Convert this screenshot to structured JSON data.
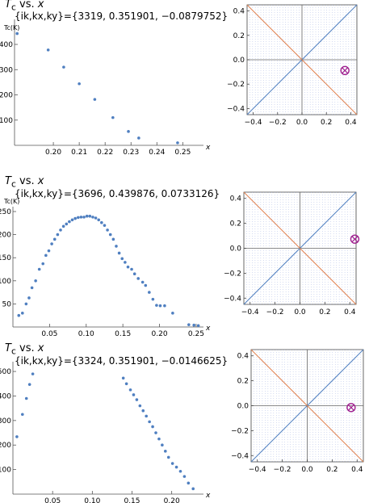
{
  "panels": [
    {
      "title_var": "T",
      "title_sub": "c",
      "title_rest": " vs. ",
      "title_x": "x",
      "info": "{ik,kx,ky}={3319, 0.351901, −0.0879752}"
    },
    {
      "title_var": "T",
      "title_sub": "c",
      "title_rest": " vs. ",
      "title_x": "x",
      "info": "{ik,kx,ky}={3696, 0.439876, 0.0733126}"
    },
    {
      "title_var": "T",
      "title_sub": "c",
      "title_rest": " vs. ",
      "title_x": "x",
      "info": "{ik,kx,ky}={3324, 0.351901, −0.0146625}"
    }
  ],
  "chart_data": [
    {
      "type": "scatter",
      "xlabel": "x",
      "ylabel": "Tc(K)",
      "xlim": [
        0.185,
        0.258
      ],
      "ylim": [
        0,
        480
      ],
      "xticks": [
        0.2,
        0.21,
        0.22,
        0.23,
        0.24,
        0.25
      ],
      "xtick_labels": [
        "0.20",
        "0.21",
        "0.22",
        "0.23",
        "0.24",
        "0.25"
      ],
      "yticks": [
        100,
        200,
        300,
        400
      ],
      "ytick_labels": [
        "100",
        "200",
        "300",
        "400"
      ],
      "color": "#4f7fc0",
      "x": [
        0.186,
        0.198,
        0.204,
        0.21,
        0.216,
        0.223,
        0.229,
        0.233,
        0.248
      ],
      "y": [
        443,
        378,
        310,
        244,
        182,
        110,
        55,
        29,
        10
      ]
    },
    {
      "type": "scatter",
      "xlabel": "x",
      "ylabel": "Tc(K)",
      "xlim": [
        0.0,
        0.26
      ],
      "ylim": [
        0,
        250
      ],
      "xticks": [
        0.05,
        0.1,
        0.15,
        0.2,
        0.25
      ],
      "xtick_labels": [
        "0.05",
        "0.10",
        "0.15",
        "0.20",
        "0.25"
      ],
      "yticks": [
        50,
        100,
        150,
        200,
        250
      ],
      "ytick_labels": [
        "50",
        "100",
        "150",
        "200",
        "250"
      ],
      "color": "#4f7fc0",
      "x": [
        0.008,
        0.013,
        0.018,
        0.022,
        0.026,
        0.031,
        0.036,
        0.041,
        0.045,
        0.049,
        0.053,
        0.057,
        0.061,
        0.065,
        0.069,
        0.073,
        0.077,
        0.081,
        0.085,
        0.089,
        0.093,
        0.097,
        0.101,
        0.105,
        0.109,
        0.113,
        0.117,
        0.121,
        0.125,
        0.129,
        0.133,
        0.137,
        0.141,
        0.145,
        0.149,
        0.153,
        0.157,
        0.162,
        0.166,
        0.171,
        0.177,
        0.181,
        0.186,
        0.191,
        0.196,
        0.201,
        0.207,
        0.218,
        0.24,
        0.247,
        0.253
      ],
      "y": [
        25,
        30,
        50,
        63,
        85,
        100,
        125,
        137,
        155,
        165,
        180,
        190,
        200,
        210,
        218,
        223,
        228,
        232,
        235,
        237,
        238,
        238,
        240,
        240,
        238,
        236,
        232,
        226,
        220,
        210,
        200,
        190,
        175,
        160,
        148,
        140,
        130,
        125,
        115,
        105,
        97,
        90,
        75,
        60,
        47,
        46,
        46,
        30,
        5,
        4,
        3
      ]
    },
    {
      "type": "scatter",
      "xlabel": "x",
      "ylabel": "",
      "xlim": [
        0.0,
        0.24
      ],
      "ylim": [
        0,
        520
      ],
      "xticks": [
        0.05,
        0.1,
        0.15,
        0.2
      ],
      "xtick_labels": [
        "0.05",
        "0.10",
        "0.15",
        "0.20"
      ],
      "yticks": [
        100,
        200,
        300,
        400,
        500
      ],
      "ytick_labels": [
        "100",
        "200",
        "300",
        "400",
        "500"
      ],
      "color": "#4f7fc0",
      "x": [
        0.005,
        0.012,
        0.017,
        0.021,
        0.025,
        0.139,
        0.143,
        0.148,
        0.152,
        0.156,
        0.16,
        0.164,
        0.168,
        0.172,
        0.176,
        0.18,
        0.184,
        0.188,
        0.192,
        0.196,
        0.201,
        0.206,
        0.211,
        0.216,
        0.221,
        0.227
      ],
      "y": [
        234,
        325,
        390,
        447,
        490,
        473,
        450,
        425,
        405,
        385,
        360,
        340,
        318,
        295,
        275,
        250,
        225,
        200,
        175,
        150,
        125,
        110,
        93,
        72,
        45,
        22
      ]
    },
    {
      "type": "scatter",
      "xlabel": "",
      "ylabel": "",
      "xlim": [
        -0.45,
        0.45
      ],
      "ylim": [
        -0.45,
        0.45
      ],
      "xticks": [
        -0.4,
        -0.2,
        0.0,
        0.2,
        0.4
      ],
      "xtick_labels": [
        "−0.4",
        "−0.2",
        "0.0",
        "0.2",
        "0.4"
      ],
      "yticks": [
        -0.4,
        -0.2,
        0.0,
        0.2,
        0.4
      ],
      "ytick_labels": [
        "−0.4",
        "−0.2",
        "0.0",
        "0.2",
        "0.4"
      ],
      "grid": "dotted",
      "lines": [
        {
          "name": "",
          "color": "#4f7fc0",
          "x": [
            -0.45,
            0.45
          ],
          "y": [
            -0.45,
            0.45
          ]
        },
        {
          "name": "",
          "color": "#e0804f",
          "x": [
            -0.45,
            0.45
          ],
          "y": [
            0.45,
            -0.45
          ]
        }
      ],
      "marker": {
        "x": 0.351901,
        "y": -0.0879752,
        "color": "#a0208f"
      }
    },
    {
      "type": "scatter",
      "xlabel": "",
      "ylabel": "",
      "xlim": [
        -0.45,
        0.45
      ],
      "ylim": [
        -0.45,
        0.45
      ],
      "xticks": [
        -0.4,
        -0.2,
        0.0,
        0.2,
        0.4
      ],
      "xtick_labels": [
        "−0.4",
        "−0.2",
        "0.0",
        "0.2",
        "0.4"
      ],
      "yticks": [
        -0.4,
        -0.2,
        0.0,
        0.2,
        0.4
      ],
      "ytick_labels": [
        "−0.4",
        "−0.2",
        "0.0",
        "0.2",
        "0.4"
      ],
      "grid": "dotted",
      "lines": [
        {
          "name": "",
          "color": "#4f7fc0",
          "x": [
            -0.45,
            0.45
          ],
          "y": [
            -0.45,
            0.45
          ]
        },
        {
          "name": "",
          "color": "#e0804f",
          "x": [
            -0.45,
            0.45
          ],
          "y": [
            0.45,
            -0.45
          ]
        }
      ],
      "marker": {
        "x": 0.439876,
        "y": 0.0733126,
        "color": "#a0208f"
      }
    },
    {
      "type": "scatter",
      "xlabel": "",
      "ylabel": "",
      "xlim": [
        -0.45,
        0.45
      ],
      "ylim": [
        -0.45,
        0.45
      ],
      "xticks": [
        -0.4,
        -0.2,
        0.0,
        0.2,
        0.4
      ],
      "xtick_labels": [
        "−0.4",
        "−0.2",
        "0.0",
        "0.2",
        "0.4"
      ],
      "yticks": [
        -0.4,
        -0.2,
        0.0,
        0.2,
        0.4
      ],
      "ytick_labels": [
        "−0.4",
        "−0.2",
        "0.0",
        "0.2",
        "0.4"
      ],
      "grid": "dotted",
      "lines": [
        {
          "name": "",
          "color": "#4f7fc0",
          "x": [
            -0.45,
            0.45
          ],
          "y": [
            -0.45,
            0.45
          ]
        },
        {
          "name": "",
          "color": "#e0804f",
          "x": [
            -0.45,
            0.45
          ],
          "y": [
            0.45,
            -0.45
          ]
        }
      ],
      "marker": {
        "x": 0.351901,
        "y": -0.0146625,
        "color": "#a0208f"
      }
    }
  ]
}
